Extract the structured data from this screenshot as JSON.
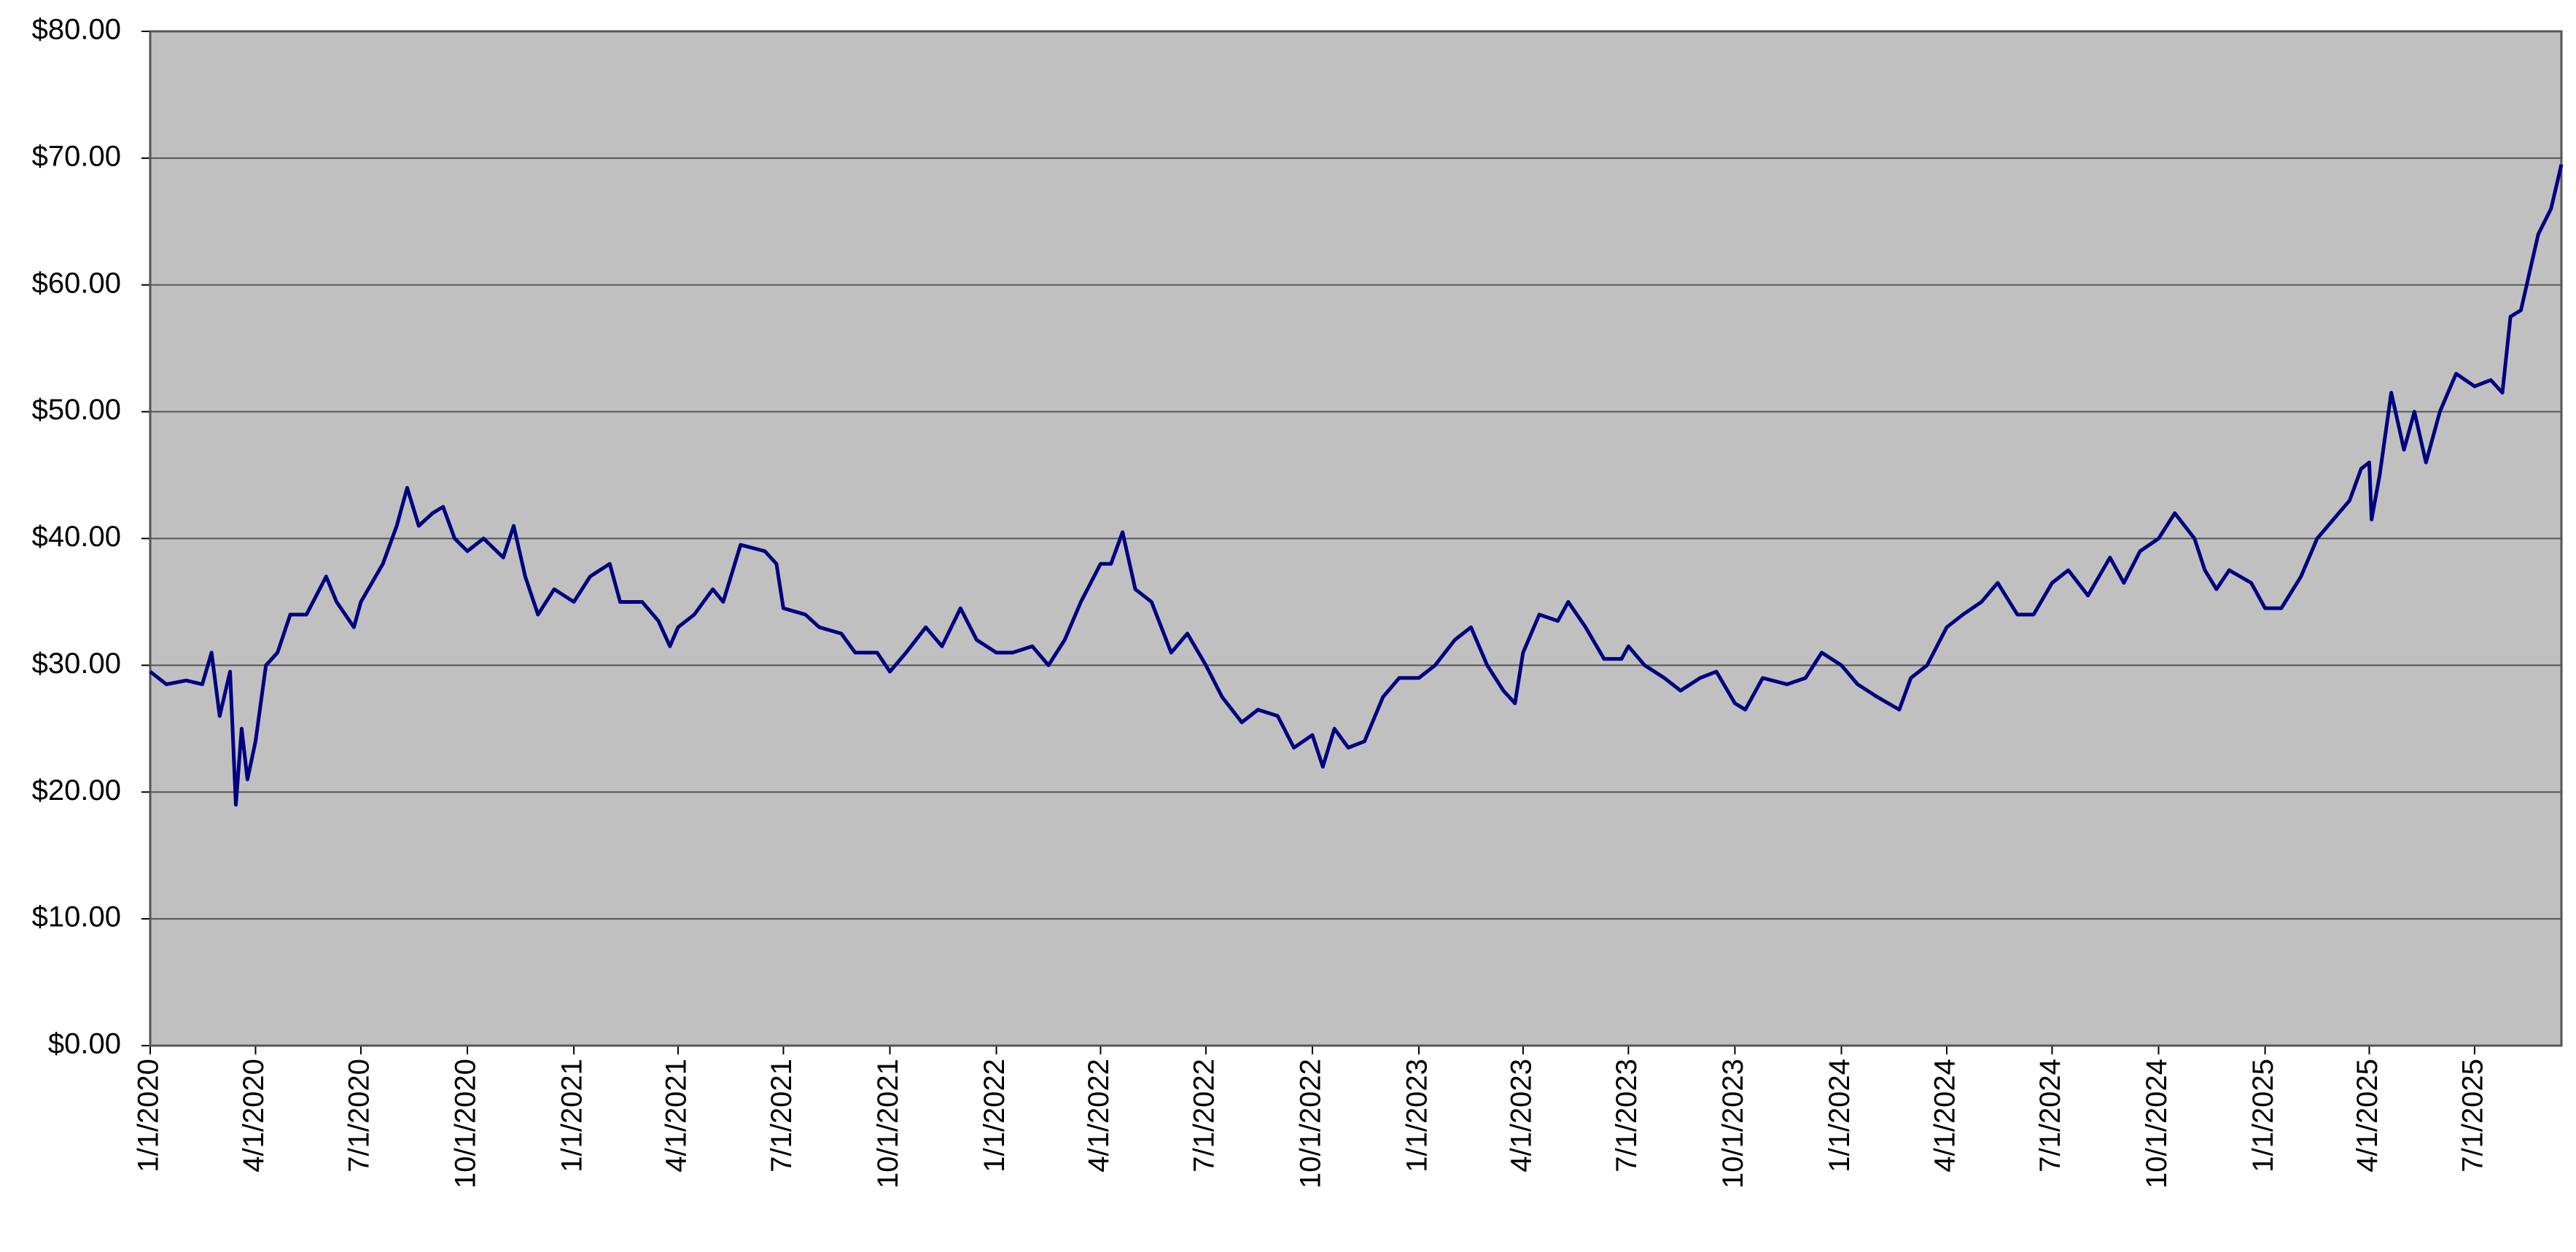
{
  "chart_data": {
    "type": "line",
    "x": [
      "2020-01-01",
      "2020-01-15",
      "2020-02-01",
      "2020-02-15",
      "2020-02-23",
      "2020-03-01",
      "2020-03-10",
      "2020-03-15",
      "2020-03-20",
      "2020-03-25",
      "2020-04-01",
      "2020-04-10",
      "2020-04-20",
      "2020-05-01",
      "2020-05-15",
      "2020-06-01",
      "2020-06-10",
      "2020-06-25",
      "2020-07-01",
      "2020-07-20",
      "2020-08-01",
      "2020-08-10",
      "2020-08-20",
      "2020-09-01",
      "2020-09-10",
      "2020-09-20",
      "2020-10-01",
      "2020-10-15",
      "2020-11-01",
      "2020-11-10",
      "2020-11-20",
      "2020-12-01",
      "2020-12-15",
      "2021-01-01",
      "2021-01-15",
      "2021-02-01",
      "2021-02-10",
      "2021-03-01",
      "2021-03-15",
      "2021-03-25",
      "2021-04-01",
      "2021-04-15",
      "2021-05-01",
      "2021-05-10",
      "2021-05-25",
      "2021-06-15",
      "2021-06-25",
      "2021-07-01",
      "2021-07-20",
      "2021-08-01",
      "2021-08-20",
      "2021-09-01",
      "2021-09-20",
      "2021-10-01",
      "2021-10-15",
      "2021-11-01",
      "2021-11-15",
      "2021-12-01",
      "2021-12-15",
      "2022-01-01",
      "2022-01-15",
      "2022-02-01",
      "2022-02-15",
      "2022-03-01",
      "2022-03-15",
      "2022-04-01",
      "2022-04-10",
      "2022-04-20",
      "2022-05-01",
      "2022-05-15",
      "2022-06-01",
      "2022-06-15",
      "2022-07-01",
      "2022-07-15",
      "2022-08-01",
      "2022-08-15",
      "2022-09-01",
      "2022-09-15",
      "2022-10-01",
      "2022-10-10",
      "2022-10-20",
      "2022-11-01",
      "2022-11-15",
      "2022-12-01",
      "2022-12-15",
      "2023-01-01",
      "2023-01-15",
      "2023-02-01",
      "2023-02-15",
      "2023-03-01",
      "2023-03-15",
      "2023-03-25",
      "2023-04-01",
      "2023-04-15",
      "2023-05-01",
      "2023-05-10",
      "2023-05-25",
      "2023-06-10",
      "2023-06-25",
      "2023-07-01",
      "2023-07-15",
      "2023-08-01",
      "2023-08-15",
      "2023-09-01",
      "2023-09-15",
      "2023-10-01",
      "2023-10-10",
      "2023-10-25",
      "2023-11-15",
      "2023-12-01",
      "2023-12-15",
      "2024-01-01",
      "2024-01-15",
      "2024-02-01",
      "2024-02-20",
      "2024-03-01",
      "2024-03-15",
      "2024-04-01",
      "2024-04-15",
      "2024-05-01",
      "2024-05-15",
      "2024-06-01",
      "2024-06-15",
      "2024-07-01",
      "2024-07-15",
      "2024-08-01",
      "2024-08-20",
      "2024-09-01",
      "2024-09-15",
      "2024-10-01",
      "2024-10-15",
      "2024-11-01",
      "2024-11-10",
      "2024-11-20",
      "2024-12-01",
      "2024-12-20",
      "2025-01-01",
      "2025-01-15",
      "2025-02-01",
      "2025-02-15",
      "2025-03-01",
      "2025-03-15",
      "2025-03-25",
      "2025-04-01",
      "2025-04-03",
      "2025-04-10",
      "2025-04-20",
      "2025-05-01",
      "2025-05-10",
      "2025-05-20",
      "2025-06-01",
      "2025-06-15",
      "2025-07-01",
      "2025-07-15",
      "2025-07-25",
      "2025-08-01",
      "2025-08-10",
      "2025-08-15",
      "2025-08-25",
      "2025-09-05",
      "2025-09-14"
    ],
    "series": [
      {
        "color": "#000080",
        "values": [
          29.5,
          28.5,
          28.8,
          28.5,
          31,
          26,
          29.5,
          19,
          25,
          21,
          24,
          30,
          31,
          34,
          34,
          37,
          35,
          33,
          35,
          38,
          41,
          44,
          41,
          42,
          42.5,
          40,
          39,
          40,
          38.5,
          41,
          37,
          34,
          36,
          35,
          37,
          38,
          35,
          35,
          33.5,
          31.5,
          33,
          34,
          36,
          35,
          39.5,
          39,
          38,
          34.5,
          34,
          33,
          32.5,
          31,
          31,
          29.5,
          31,
          33,
          31.5,
          34.5,
          32,
          31,
          31,
          31.5,
          30,
          32,
          35,
          38,
          38,
          40.5,
          36,
          35,
          31,
          32.5,
          30,
          27.5,
          25.5,
          26.5,
          26,
          23.5,
          24.5,
          22,
          25,
          23.5,
          24,
          27.5,
          29,
          29,
          30,
          32,
          33,
          30,
          28,
          27,
          31,
          34,
          33.5,
          35,
          33,
          30.5,
          30.5,
          31.5,
          30,
          29,
          28,
          29,
          29.5,
          27,
          26.5,
          29,
          28.5,
          29,
          31,
          30,
          28.5,
          27.5,
          26.5,
          29,
          30,
          33,
          34,
          35,
          36.5,
          34,
          34,
          36.5,
          37.5,
          35.5,
          38.5,
          36.5,
          39,
          40,
          42,
          40,
          37.5,
          36,
          37.5,
          36.5,
          34.5,
          34.5,
          37,
          40,
          41.5,
          43,
          45.5,
          46,
          41.5,
          45,
          51.5,
          47,
          50,
          46,
          50,
          53,
          52,
          52.5,
          51.5,
          57.5,
          58,
          60,
          64,
          66,
          69.5
        ]
      }
    ],
    "xlim": [
      "2020-01-01",
      "2025-09-14"
    ],
    "xticks": [
      {
        "value": "2020-01-01",
        "label": "1/1/2020"
      },
      {
        "value": "2020-04-01",
        "label": "4/1/2020"
      },
      {
        "value": "2020-07-01",
        "label": "7/1/2020"
      },
      {
        "value": "2020-10-01",
        "label": "10/1/2020"
      },
      {
        "value": "2021-01-01",
        "label": "1/1/2021"
      },
      {
        "value": "2021-04-01",
        "label": "4/1/2021"
      },
      {
        "value": "2021-07-01",
        "label": "7/1/2021"
      },
      {
        "value": "2021-10-01",
        "label": "10/1/2021"
      },
      {
        "value": "2022-01-01",
        "label": "1/1/2022"
      },
      {
        "value": "2022-04-01",
        "label": "4/1/2022"
      },
      {
        "value": "2022-07-01",
        "label": "7/1/2022"
      },
      {
        "value": "2022-10-01",
        "label": "10/1/2022"
      },
      {
        "value": "2023-01-01",
        "label": "1/1/2023"
      },
      {
        "value": "2023-04-01",
        "label": "4/1/2023"
      },
      {
        "value": "2023-07-01",
        "label": "7/1/2023"
      },
      {
        "value": "2023-10-01",
        "label": "10/1/2023"
      },
      {
        "value": "2024-01-01",
        "label": "1/1/2024"
      },
      {
        "value": "2024-04-01",
        "label": "4/1/2024"
      },
      {
        "value": "2024-07-01",
        "label": "7/1/2024"
      },
      {
        "value": "2024-10-01",
        "label": "10/1/2024"
      },
      {
        "value": "2025-01-01",
        "label": "1/1/2025"
      },
      {
        "value": "2025-04-01",
        "label": "4/1/2025"
      },
      {
        "value": "2025-07-01",
        "label": "7/1/2025"
      }
    ],
    "ylim": [
      0,
      80
    ],
    "yticks": [
      {
        "value": 0,
        "label": "$0.00"
      },
      {
        "value": 10,
        "label": "$10.00"
      },
      {
        "value": 20,
        "label": "$20.00"
      },
      {
        "value": 30,
        "label": "$30.00"
      },
      {
        "value": 40,
        "label": "$40.00"
      },
      {
        "value": 50,
        "label": "$50.00"
      },
      {
        "value": 60,
        "label": "$60.00"
      },
      {
        "value": 70,
        "label": "$70.00"
      },
      {
        "value": 80,
        "label": "$80.00"
      }
    ],
    "grid": true,
    "plot_background": "#c0c0c0"
  }
}
